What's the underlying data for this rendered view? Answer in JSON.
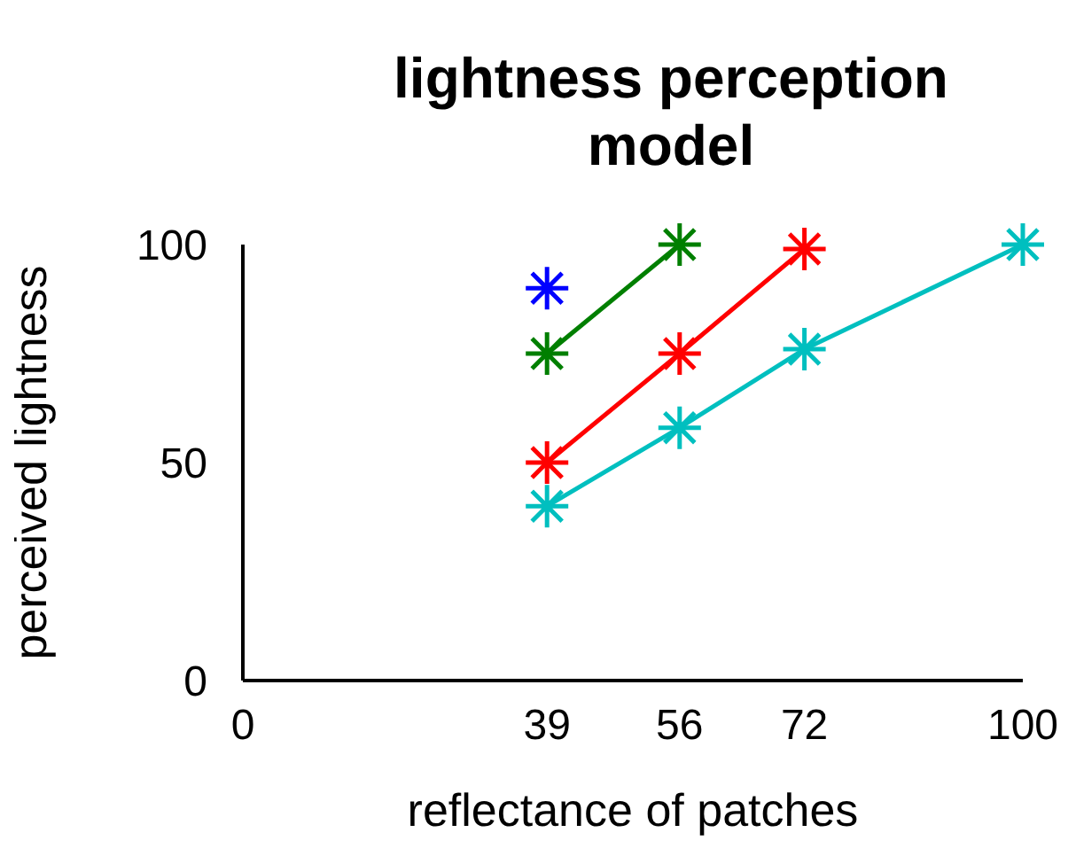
{
  "chart_data": {
    "type": "line",
    "title": "lightness perception model",
    "xlabel": "reflectance of patches",
    "ylabel": "perceived lightness",
    "xlim": [
      0,
      100
    ],
    "xticks": [
      0,
      39,
      56,
      72,
      100
    ],
    "ylim": [
      0,
      100
    ],
    "yticks": [
      0,
      50,
      100
    ],
    "grid": false,
    "marker": "cross",
    "series": [
      {
        "color": "#0000ff",
        "x": [
          39
        ],
        "values": [
          90
        ]
      },
      {
        "color": "#007f00",
        "x": [
          39,
          56
        ],
        "values": [
          75,
          100
        ]
      },
      {
        "color": "#ff0000",
        "x": [
          39,
          56,
          72
        ],
        "values": [
          50,
          75,
          99
        ]
      },
      {
        "color": "#00bfbf",
        "x": [
          39,
          56,
          72,
          100
        ],
        "values": [
          40,
          58,
          76,
          100
        ]
      }
    ]
  }
}
